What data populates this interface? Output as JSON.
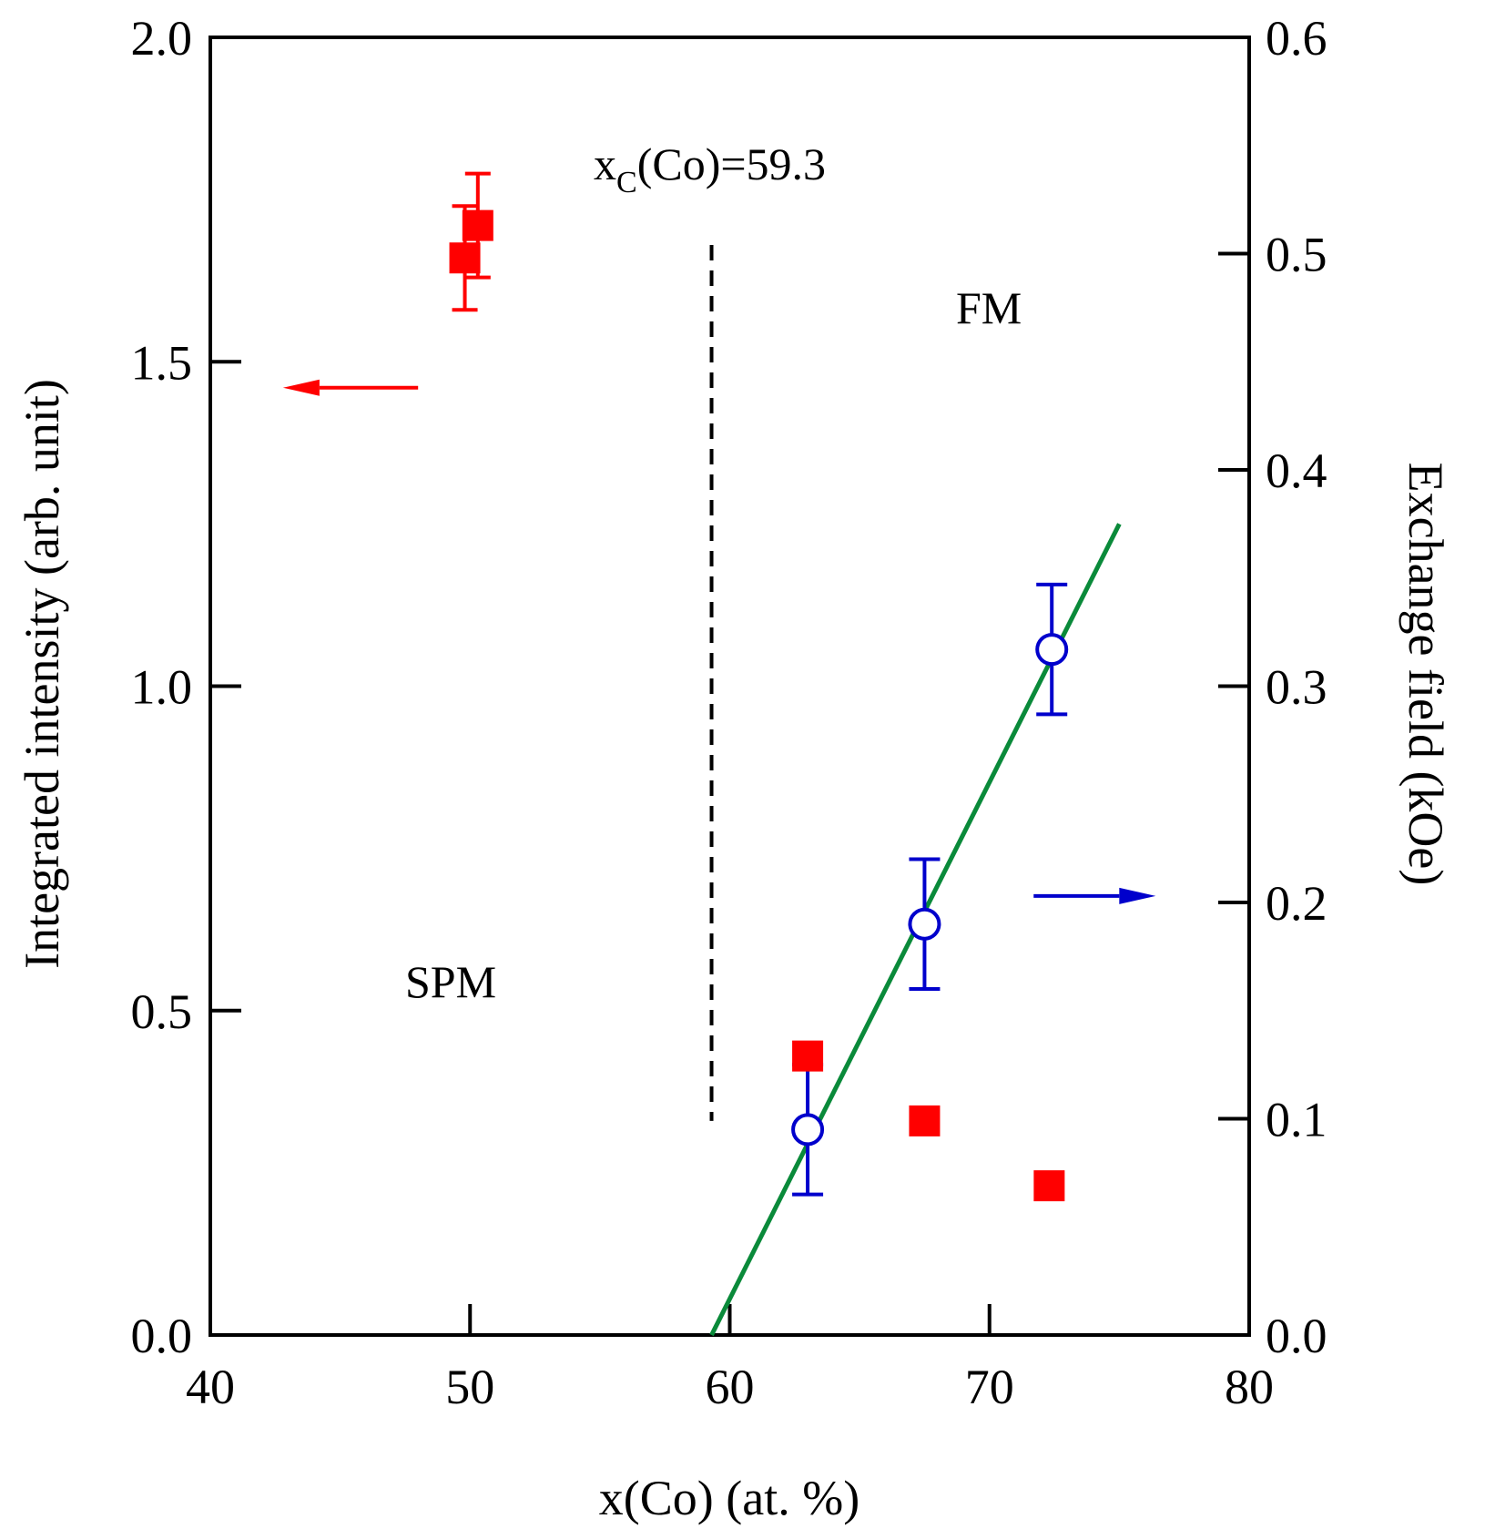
{
  "chart_data": {
    "type": "scatter",
    "title": "",
    "xlabel": "x(Co) (at. %)",
    "ylabel_left": "Integrated intensity (arb. unit)",
    "ylabel_right": "Exchange field (kOe)",
    "xlim": [
      40,
      80
    ],
    "ylim_left": [
      0.0,
      2.0
    ],
    "ylim_right": [
      0.0,
      0.6
    ],
    "x_ticks": [
      "40",
      "50",
      "60",
      "70",
      "80"
    ],
    "y_left_ticks": [
      "0.0",
      "0.5",
      "1.0",
      "1.5",
      "2.0"
    ],
    "y_right_ticks": [
      "0.0",
      "0.1",
      "0.2",
      "0.3",
      "0.4",
      "0.5",
      "0.6"
    ],
    "grid": false,
    "series": [
      {
        "name": "Integrated intensity",
        "axis": "left",
        "marker": "filled-square",
        "color": "#ff0000",
        "points": [
          {
            "x": 49.8,
            "y": 1.66,
            "err": 0.08
          },
          {
            "x": 50.3,
            "y": 1.71,
            "err": 0.08
          },
          {
            "x": 63.0,
            "y": 0.43,
            "err": 0.0
          },
          {
            "x": 67.5,
            "y": 0.33,
            "err": 0.0
          },
          {
            "x": 72.3,
            "y": 0.23,
            "err": 0.0
          }
        ]
      },
      {
        "name": "Exchange field",
        "axis": "right",
        "marker": "open-circle",
        "color": "#0000cc",
        "points": [
          {
            "x": 63.0,
            "y": 0.095,
            "err": 0.03
          },
          {
            "x": 67.5,
            "y": 0.19,
            "err": 0.03
          },
          {
            "x": 72.4,
            "y": 0.317,
            "err": 0.03
          }
        ]
      },
      {
        "name": "Linear fit",
        "axis": "right",
        "type": "line",
        "color": "#0a8a3a",
        "x": [
          59.3,
          75.0
        ],
        "y": [
          0.0,
          0.375
        ]
      }
    ],
    "vline": {
      "x": 59.3,
      "y_range_left": [
        0.33,
        1.68
      ],
      "style": "dashed",
      "color": "#000000"
    },
    "annotations": {
      "xc_main": "x",
      "xc_sub": "C",
      "xc_rest": "(Co)=59.3",
      "fm": "FM",
      "spm": "SPM"
    },
    "axis_arrows": [
      {
        "points_to": "left",
        "color": "#ff0000",
        "x_from": 48.0,
        "x_to": 42.8,
        "y_left": 1.46
      },
      {
        "points_to": "right",
        "color": "#0000cc",
        "x_from": 71.7,
        "x_to": 76.4,
        "y_right": 0.203
      }
    ]
  }
}
